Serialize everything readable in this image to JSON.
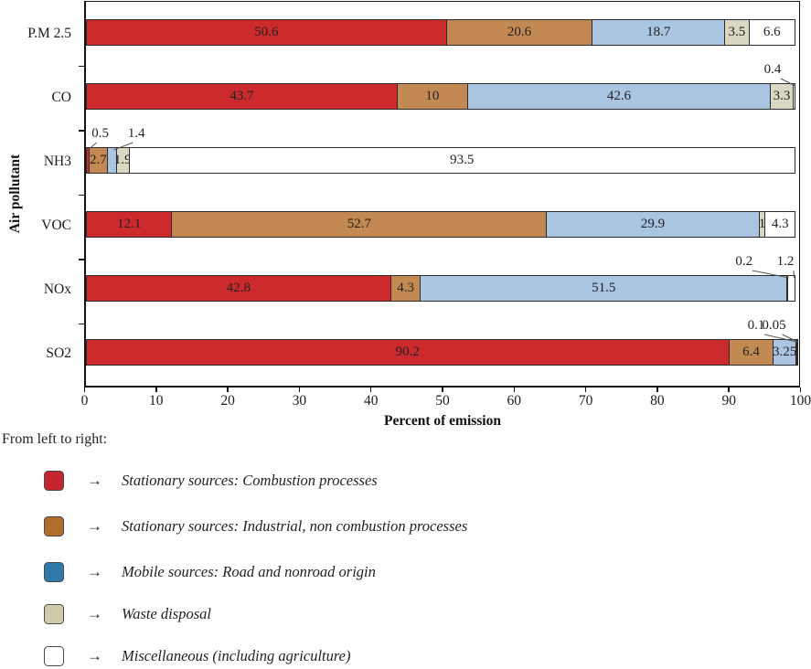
{
  "chart_data": {
    "type": "bar",
    "orientation": "horizontal",
    "stacked": true,
    "xlabel": "Percent of emission",
    "ylabel": "Air pollutant",
    "xlim": [
      0,
      100
    ],
    "x_ticks": [
      "0",
      "10",
      "20",
      "30",
      "40",
      "50",
      "60",
      "70",
      "80",
      "90",
      "100"
    ],
    "grid": false,
    "segment_colors": [
      "#cd2a2e",
      "#c28a52",
      "#a9c5e2",
      "#dad7c3",
      "#ffffff"
    ],
    "series_names": [
      "Stationary sources: Combustion processes",
      "Stationary sources: Industrial, non combustion processes",
      "Mobile sources: Road and nonroad origin",
      "Waste disposal",
      "Miscellaneous (including agriculture)"
    ],
    "rows": [
      {
        "category": "P.M 2.5",
        "segments": [
          {
            "value": 50.6,
            "label": "50.6",
            "label_pos": "inside"
          },
          {
            "value": 20.6,
            "label": "20.6",
            "label_pos": "inside"
          },
          {
            "value": 18.7,
            "label": "18.7",
            "label_pos": "inside"
          },
          {
            "value": 3.5,
            "label": "3.5",
            "label_pos": "inside"
          },
          {
            "value": 6.6,
            "label": "6.6",
            "label_pos": "inside"
          }
        ]
      },
      {
        "category": "CO",
        "segments": [
          {
            "value": 43.7,
            "label": "43.7",
            "label_pos": "inside"
          },
          {
            "value": 10,
            "label": "10",
            "label_pos": "inside"
          },
          {
            "value": 42.6,
            "label": "42.6",
            "label_pos": "inside"
          },
          {
            "value": 3.3,
            "label": "3.3",
            "label_pos": "inside"
          },
          {
            "value": 0.4,
            "label": "0.4",
            "label_pos": "callout",
            "label_x": 96.4,
            "target_x": 99.6
          }
        ]
      },
      {
        "category": "NH3",
        "segments": [
          {
            "value": 0.5,
            "label": "0.5",
            "label_pos": "callout",
            "label_x": 2.0,
            "target_x": 0.3
          },
          {
            "value": 2.7,
            "label": "2.7",
            "label_pos": "inside"
          },
          {
            "value": 1.4,
            "label": "1.4",
            "label_pos": "callout",
            "label_x": 7.1,
            "target_x": 3.9
          },
          {
            "value": 1.9,
            "label": "1.9",
            "label_pos": "inside"
          },
          {
            "value": 93.5,
            "label": "93.5",
            "label_pos": "inside"
          }
        ]
      },
      {
        "category": "VOC",
        "segments": [
          {
            "value": 12.1,
            "label": "12.1",
            "label_pos": "inside"
          },
          {
            "value": 52.7,
            "label": "52.7",
            "label_pos": "inside"
          },
          {
            "value": 29.9,
            "label": "29.9",
            "label_pos": "inside"
          },
          {
            "value": 1,
            "label": "1",
            "label_pos": "inside"
          },
          {
            "value": 4.3,
            "label": "4.3",
            "label_pos": "inside"
          }
        ]
      },
      {
        "category": "NOx",
        "segments": [
          {
            "value": 42.8,
            "label": "42.8",
            "label_pos": "inside"
          },
          {
            "value": 4.3,
            "label": "4.3",
            "label_pos": "inside"
          },
          {
            "value": 51.5,
            "label": "51.5",
            "label_pos": "inside"
          },
          {
            "value": 0.2,
            "label": "0.2",
            "label_pos": "callout",
            "label_x": 92.4,
            "target_x": 98.7
          },
          {
            "value": 1.2,
            "label": "1.2",
            "label_pos": "callout",
            "label_x": 98.2,
            "target_x": 99.4
          }
        ]
      },
      {
        "category": "SO2",
        "segments": [
          {
            "value": 90.2,
            "label": "90.2",
            "label_pos": "inside"
          },
          {
            "value": 6.4,
            "label": "6.4",
            "label_pos": "inside"
          },
          {
            "value": 3.25,
            "label": "3.25",
            "label_pos": "inside"
          },
          {
            "value": 0.1,
            "label": "0.1",
            "label_pos": "callout",
            "label_x": 94.1,
            "target_x": 99.8
          },
          {
            "value": 0.05,
            "label": "0.05",
            "label_pos": "callout",
            "label_x": 96.6,
            "target_x": 99.95
          }
        ]
      }
    ]
  },
  "legend": {
    "intro": "From left to right:",
    "arrow": "→",
    "items": [
      {
        "color": "#c4252e",
        "label": "Stationary sources: Combustion processes"
      },
      {
        "color": "#b06d2b",
        "label": "Stationary sources: Industrial, non combustion processes"
      },
      {
        "color": "#2e78aa",
        "label": "Mobile sources: Road and nonroad origin"
      },
      {
        "color": "#cfcbaa",
        "label": "Waste disposal"
      },
      {
        "color": "#ffffff",
        "label": "Miscellaneous (including agriculture)"
      }
    ]
  }
}
